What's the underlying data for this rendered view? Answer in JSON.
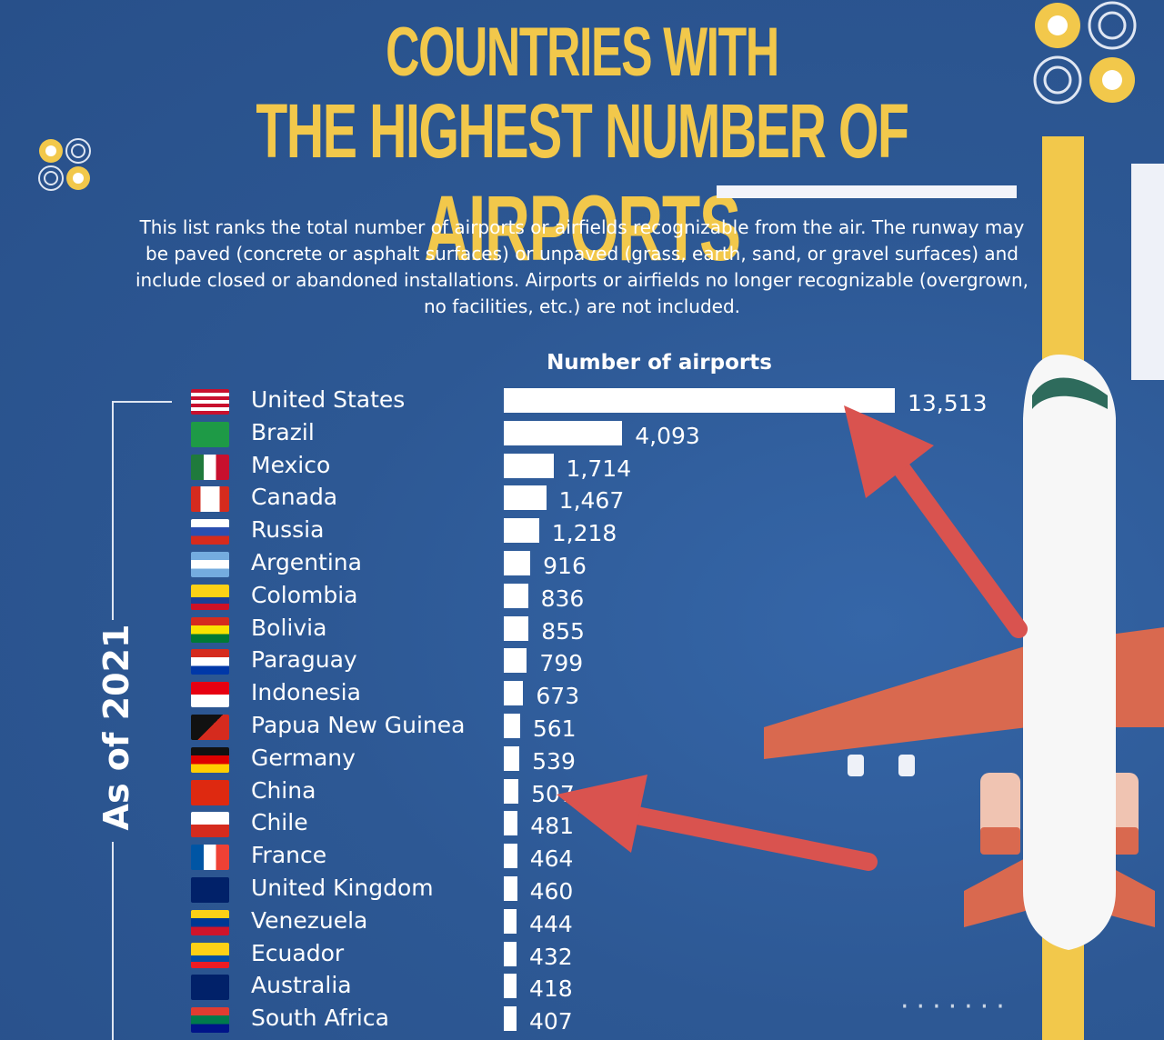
{
  "title": {
    "line1": "COUNTRIES WITH",
    "line2_prefix": "THE HIGHEST NUMBER OF ",
    "line2_emphasis": "AIRPORTS"
  },
  "description": "This list ranks the total number of airports or airfields recognizable from the air. The runway may be paved (concrete or asphalt surfaces) or unpaved (grass, earth, sand, or gravel surfaces) and include closed or abandoned installations. Airports or airfields no longer recognizable (overgrown, no facilities, etc.) are not included.",
  "side_label": "As of 2021",
  "colors": {
    "background": "#2d5894",
    "title": "#f2c84b",
    "bar": "#ffffff",
    "arrow": "#d9534f",
    "plane_wing": "#d9694f"
  },
  "chart_data": {
    "type": "bar",
    "orientation": "horizontal",
    "title": "COUNTRIES WITH THE HIGHEST NUMBER OF AIRPORTS",
    "xlabel": "Number of airports",
    "ylabel": "",
    "xlim": [
      0,
      13513
    ],
    "grid": false,
    "categories": [
      "United States",
      "Brazil",
      "Mexico",
      "Canada",
      "Russia",
      "Argentina",
      "Colombia",
      "Bolivia",
      "Paraguay",
      "Indonesia",
      "Papua New Guinea",
      "Germany",
      "China",
      "Chile",
      "France",
      "United Kingdom",
      "Venezuela",
      "Ecuador",
      "Australia",
      "South Africa"
    ],
    "values": [
      13513,
      4093,
      1714,
      1467,
      1218,
      916,
      836,
      855,
      799,
      673,
      561,
      539,
      507,
      481,
      464,
      460,
      444,
      432,
      418,
      407
    ],
    "labels": [
      "13,513",
      "4,093",
      "1,714",
      "1,467",
      "1,218",
      "916",
      "836",
      "855",
      "799",
      "673",
      "561",
      "539",
      "507",
      "481",
      "464",
      "460",
      "444",
      "432",
      "418",
      "407"
    ],
    "flags": [
      "us-flag",
      "brazil-flag",
      "mexico-flag",
      "canada-flag",
      "russia-flag",
      "argentina-flag",
      "colombia-flag",
      "bolivia-flag",
      "paraguay-flag",
      "indonesia-flag",
      "papua-new-guinea-flag",
      "germany-flag",
      "china-flag",
      "chile-flag",
      "france-flag",
      "uk-flag",
      "venezuela-flag",
      "ecuador-flag",
      "australia-flag",
      "south-africa-flag"
    ],
    "annotations": [
      {
        "type": "arrow",
        "points_to": "United States"
      },
      {
        "type": "arrow",
        "points_to": "China"
      }
    ]
  }
}
